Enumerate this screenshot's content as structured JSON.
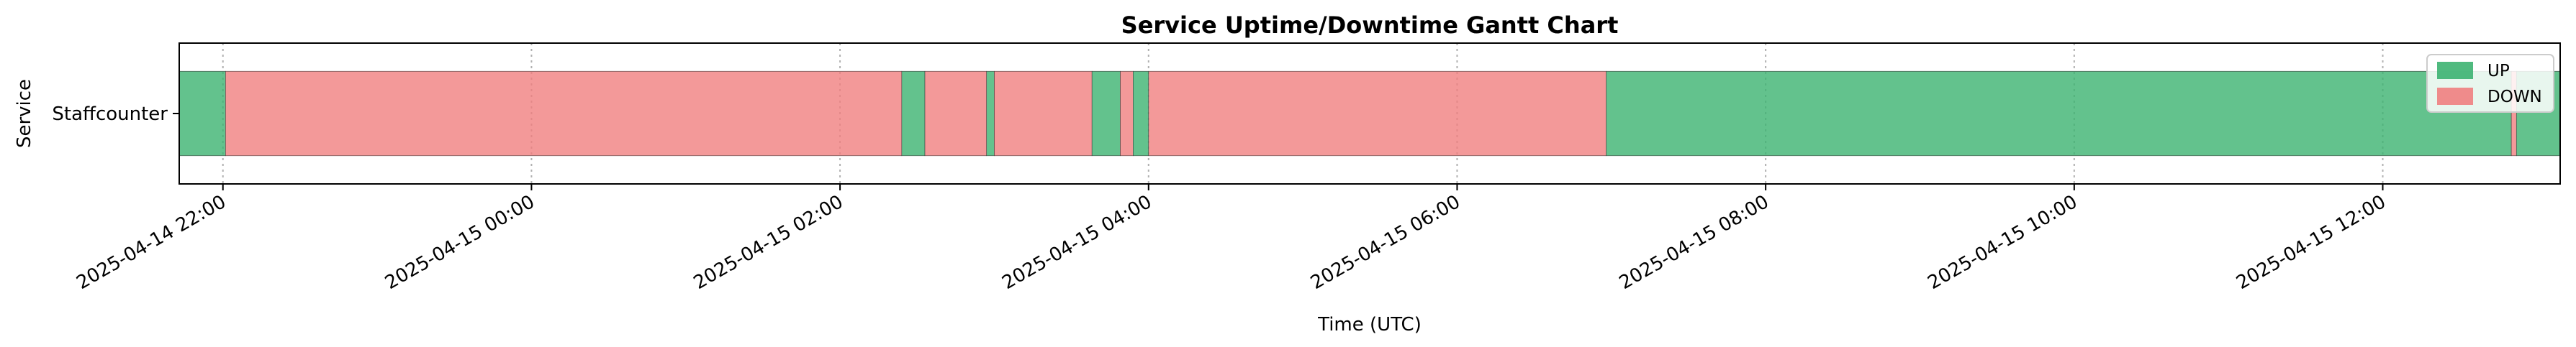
{
  "chart_data": {
    "type": "gantt",
    "title": "Service Uptime/Downtime Gantt Chart",
    "xlabel": "Time (UTC)",
    "ylabel": "Service",
    "categories": [
      "Staffcounter"
    ],
    "xlim": [
      "2025-04-14 21:43",
      "2025-04-15 13:09"
    ],
    "x_ticks": [
      "2025-04-14 22:00",
      "2025-04-15 00:00",
      "2025-04-15 02:00",
      "2025-04-15 04:00",
      "2025-04-15 06:00",
      "2025-04-15 08:00",
      "2025-04-15 10:00",
      "2025-04-15 12:00"
    ],
    "grid": true,
    "legend": {
      "position": "top-right",
      "entries": [
        {
          "label": "UP",
          "color": "#3cb371"
        },
        {
          "label": "DOWN",
          "color": "#f08080"
        }
      ]
    },
    "segments": [
      {
        "service": "Staffcounter",
        "status": "UP",
        "start": "2025-04-14 21:43",
        "end": "2025-04-14 22:01"
      },
      {
        "service": "Staffcounter",
        "status": "DOWN",
        "start": "2025-04-14 22:01",
        "end": "2025-04-15 02:24"
      },
      {
        "service": "Staffcounter",
        "status": "UP",
        "start": "2025-04-15 02:24",
        "end": "2025-04-15 02:33"
      },
      {
        "service": "Staffcounter",
        "status": "DOWN",
        "start": "2025-04-15 02:33",
        "end": "2025-04-15 02:57"
      },
      {
        "service": "Staffcounter",
        "status": "UP",
        "start": "2025-04-15 02:57",
        "end": "2025-04-15 03:00"
      },
      {
        "service": "Staffcounter",
        "status": "DOWN",
        "start": "2025-04-15 03:00",
        "end": "2025-04-15 03:38"
      },
      {
        "service": "Staffcounter",
        "status": "UP",
        "start": "2025-04-15 03:38",
        "end": "2025-04-15 03:49"
      },
      {
        "service": "Staffcounter",
        "status": "DOWN",
        "start": "2025-04-15 03:49",
        "end": "2025-04-15 03:54"
      },
      {
        "service": "Staffcounter",
        "status": "UP",
        "start": "2025-04-15 03:54",
        "end": "2025-04-15 04:00"
      },
      {
        "service": "Staffcounter",
        "status": "DOWN",
        "start": "2025-04-15 04:00",
        "end": "2025-04-15 06:58"
      },
      {
        "service": "Staffcounter",
        "status": "UP",
        "start": "2025-04-15 06:58",
        "end": "2025-04-15 12:50"
      },
      {
        "service": "Staffcounter",
        "status": "DOWN",
        "start": "2025-04-15 12:50",
        "end": "2025-04-15 12:52"
      },
      {
        "service": "Staffcounter",
        "status": "UP",
        "start": "2025-04-15 12:52",
        "end": "2025-04-15 13:09"
      }
    ]
  }
}
